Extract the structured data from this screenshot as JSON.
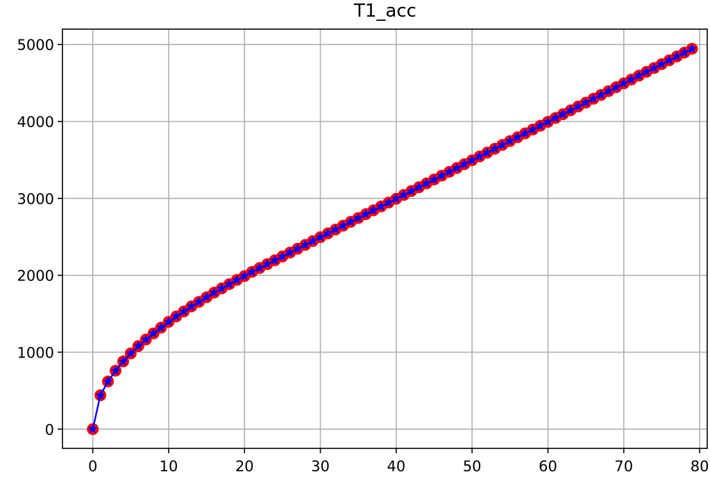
{
  "chart_data": {
    "type": "line",
    "title": "T1_acc",
    "xlabel": "",
    "ylabel": "",
    "xlim": [
      -4,
      81
    ],
    "ylim": [
      -250,
      5200
    ],
    "grid": true,
    "x_ticks": [
      0,
      10,
      20,
      30,
      40,
      50,
      60,
      70,
      80
    ],
    "y_ticks": [
      0,
      1000,
      2000,
      3000,
      4000,
      5000
    ],
    "series": [
      {
        "line_color": "#0000ff",
        "marker_face_color": "#ff0000",
        "star_marker_color": "#0000ff",
        "x": [
          0,
          1,
          2,
          3,
          4,
          5,
          6,
          7,
          8,
          9,
          10,
          11,
          12,
          13,
          14,
          15,
          16,
          17,
          18,
          19,
          20,
          21,
          22,
          23,
          24,
          25,
          26,
          27,
          28,
          29,
          30,
          31,
          32,
          33,
          34,
          35,
          36,
          37,
          38,
          39,
          40,
          41,
          42,
          43,
          44,
          45,
          46,
          47,
          48,
          49,
          50,
          51,
          52,
          53,
          54,
          55,
          56,
          57,
          58,
          59,
          60,
          61,
          62,
          63,
          64,
          65,
          66,
          67,
          68,
          69,
          70,
          71,
          72,
          73,
          74,
          75,
          76,
          77,
          78,
          79
        ],
        "y": [
          0,
          440,
          620,
          760,
          880,
          985,
          1080,
          1165,
          1245,
          1320,
          1395,
          1465,
          1530,
          1595,
          1655,
          1715,
          1775,
          1830,
          1885,
          1940,
          1990,
          2045,
          2095,
          2145,
          2195,
          2245,
          2295,
          2345,
          2395,
          2445,
          2495,
          2545,
          2595,
          2645,
          2695,
          2745,
          2795,
          2845,
          2895,
          2945,
          2995,
          3045,
          3095,
          3145,
          3195,
          3245,
          3295,
          3345,
          3395,
          3445,
          3495,
          3545,
          3595,
          3645,
          3695,
          3745,
          3795,
          3845,
          3895,
          3945,
          3995,
          4045,
          4095,
          4145,
          4195,
          4245,
          4295,
          4345,
          4395,
          4445,
          4495,
          4545,
          4595,
          4645,
          4695,
          4745,
          4795,
          4845,
          4895,
          4945
        ]
      }
    ]
  }
}
